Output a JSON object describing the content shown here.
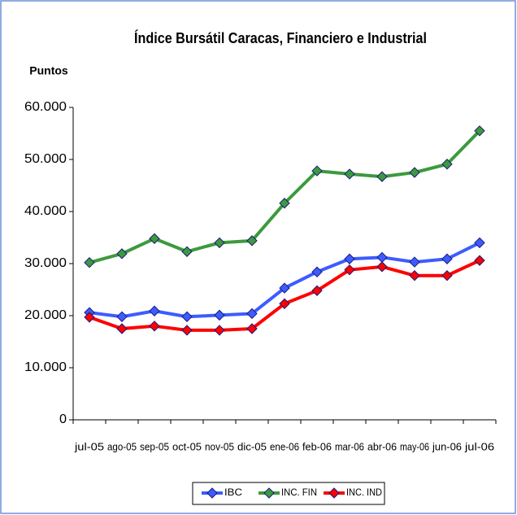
{
  "chart_data": {
    "type": "line",
    "title": "Índice Bursátil Caracas, Financiero e Industrial",
    "y_label": "Puntos",
    "categories": [
      "jul-05",
      "ago-05",
      "sep-05",
      "oct-05",
      "nov-05",
      "dic-05",
      "ene-06",
      "feb-06",
      "mar-06",
      "abr-06",
      "may-06",
      "jun-06",
      "jul-06"
    ],
    "series": [
      {
        "name": "IBC",
        "color": "#3d5cff",
        "values": [
          20600,
          19800,
          20900,
          19800,
          20100,
          20400,
          25300,
          28400,
          30900,
          31200,
          30300,
          30900,
          34000
        ]
      },
      {
        "name": "INC. FIN",
        "color": "#3c9a3c",
        "values": [
          30200,
          31900,
          34800,
          32300,
          34000,
          34400,
          41600,
          47800,
          47200,
          46700,
          47500,
          49100,
          55500
        ]
      },
      {
        "name": "INC. IND",
        "color": "#ff0000",
        "values": [
          19700,
          17500,
          18000,
          17200,
          17200,
          17500,
          22300,
          24800,
          28800,
          29400,
          27700,
          27700,
          30600
        ]
      }
    ],
    "ylim": [
      0,
      60000
    ],
    "yticks": [
      0,
      {
        "value": 10000,
        "label": "10.000"
      },
      {
        "value": 20000,
        "label": "20.000"
      },
      {
        "value": 30000,
        "label": "30.000"
      },
      {
        "value": 40000,
        "label": "40.000"
      },
      {
        "value": 50000,
        "label": "50.000"
      },
      {
        "value": 60000,
        "label": "60.000"
      }
    ],
    "legend": "bottom"
  }
}
